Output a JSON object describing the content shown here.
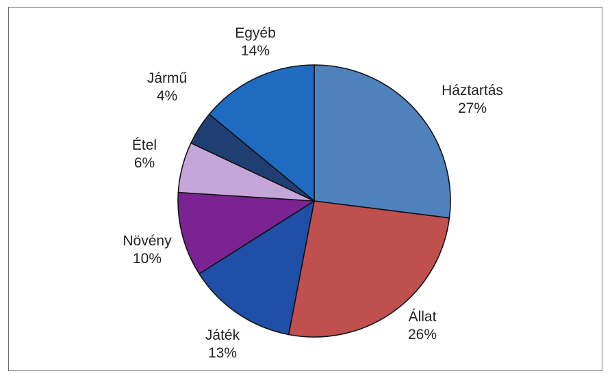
{
  "chart_data": {
    "type": "pie",
    "start_angle_deg": 0,
    "direction": "clockwise",
    "slices": [
      {
        "label": "Háztartás",
        "value": 27,
        "value_label": "27%",
        "color": "#4f81bd"
      },
      {
        "label": "Állat",
        "value": 26,
        "value_label": "26%",
        "color": "#c0504d"
      },
      {
        "label": "Játék",
        "value": 13,
        "value_label": "13%",
        "color": "#1f4fa6"
      },
      {
        "label": "Növény",
        "value": 10,
        "value_label": "10%",
        "color": "#7b2393"
      },
      {
        "label": "Étel",
        "value": 6,
        "value_label": "6%",
        "color": "#c6a6d9"
      },
      {
        "label": "Jármű",
        "value": 4,
        "value_label": "4%",
        "color": "#1f3f73"
      },
      {
        "label": "Egyéb",
        "value": 14,
        "value_label": "14%",
        "color": "#1f6bc2"
      }
    ],
    "outline_color": "#111111"
  }
}
